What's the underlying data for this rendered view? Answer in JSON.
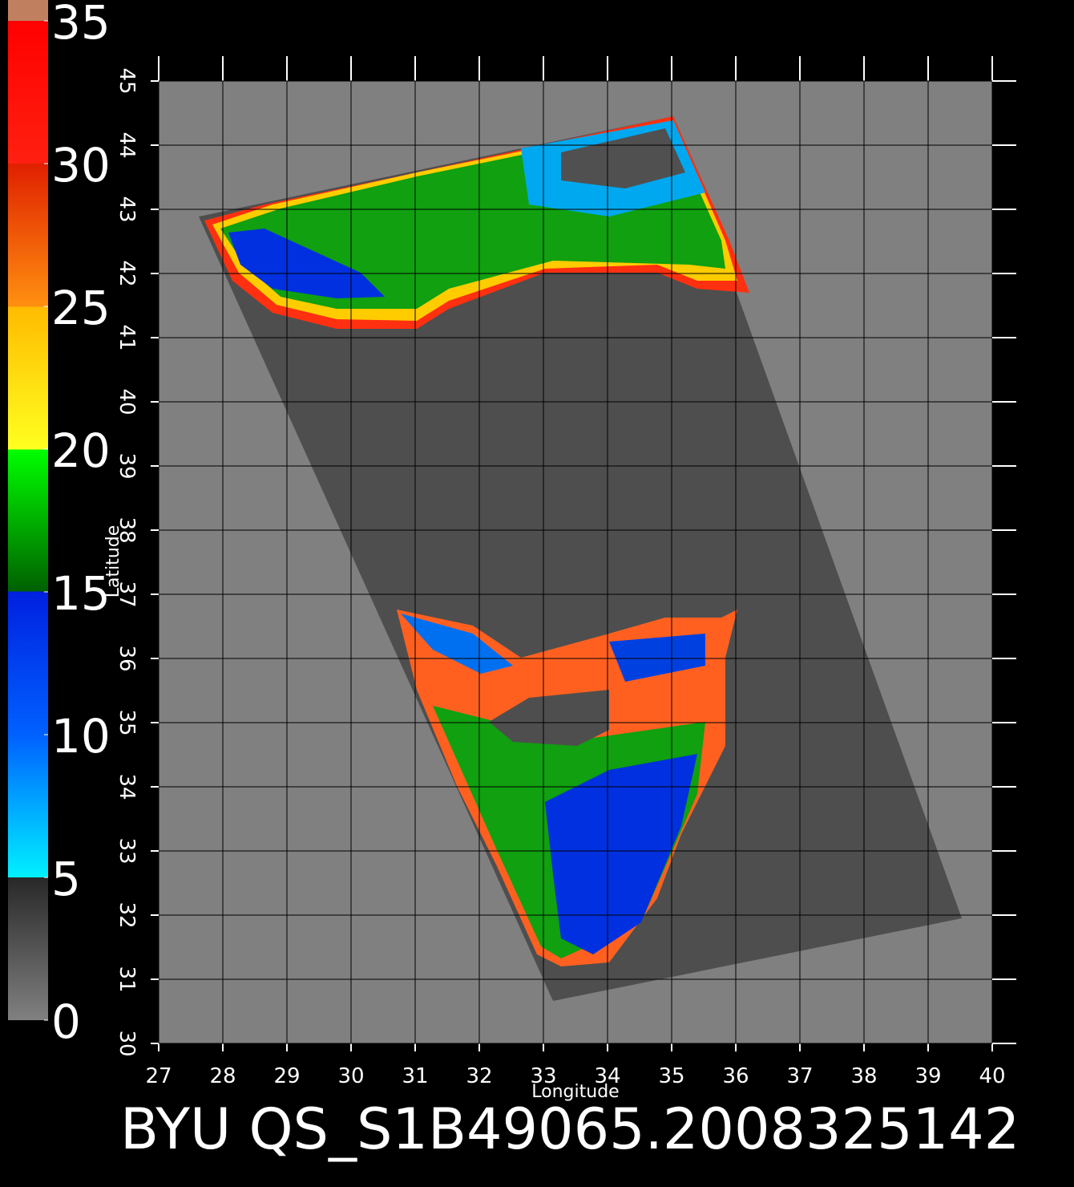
{
  "colorbar": {
    "ticks": [
      0,
      5,
      10,
      15,
      20,
      25,
      30,
      35
    ]
  },
  "map": {
    "xlabel": "Longitude",
    "ylabel": "Latitude",
    "xlim": [
      27,
      40
    ],
    "ylim": [
      30,
      45
    ],
    "xticks": [
      27,
      28,
      29,
      30,
      31,
      32,
      33,
      34,
      35,
      36,
      37,
      38,
      39,
      40
    ],
    "yticks": [
      30,
      31,
      32,
      33,
      34,
      35,
      36,
      37,
      38,
      39,
      40,
      41,
      42,
      43,
      44,
      45
    ]
  },
  "footer": {
    "title": "BYU  QS_S1B49065.2008325142"
  }
}
